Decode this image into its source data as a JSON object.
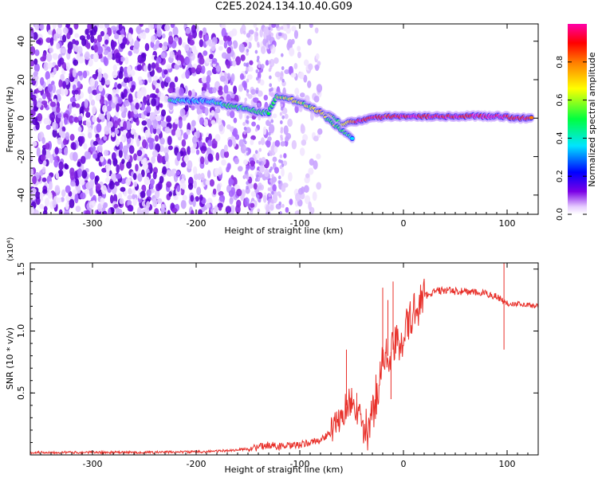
{
  "title": "C2E5.2024.134.10.40.G09",
  "chart_data": [
    {
      "type": "heatmap",
      "title": "C2E5.2024.134.10.40.G09",
      "xlabel": "Height of straight line (km)",
      "ylabel": "Frequency (Hz)",
      "xlim": [
        -360,
        130
      ],
      "ylim": [
        -50,
        49
      ],
      "xticks": [
        -300,
        -200,
        -100,
        0,
        100
      ],
      "xtick_labels": [
        "-300",
        "-200",
        "-100",
        "0",
        "100"
      ],
      "yticks": [
        -40,
        -20,
        0,
        20,
        40
      ],
      "ytick_labels": [
        "-40",
        "-20",
        "0",
        "20",
        "40"
      ],
      "colorbar": {
        "label": "Normalized spectral amplitude",
        "range": [
          0,
          1
        ],
        "ticks": [
          0.0,
          0.2,
          0.4,
          0.6,
          0.8
        ],
        "tick_labels": [
          "0.0",
          "0.2",
          "0.4",
          "0.6",
          "0.8"
        ],
        "colormap": "rainbow (white-violet-blue-cyan-green-yellow-red-magenta)"
      },
      "noise_region_x": [
        -360,
        -110
      ],
      "signal_ridge": [
        {
          "x": -225,
          "freq": 9,
          "amp": 0.4
        },
        {
          "x": -210,
          "freq": 9,
          "amp": 0.25
        },
        {
          "x": -190,
          "freq": 9,
          "amp": 0.22
        },
        {
          "x": -180,
          "freq": 8,
          "amp": 0.35
        },
        {
          "x": -165,
          "freq": 6,
          "amp": 0.42
        },
        {
          "x": -150,
          "freq": 5,
          "amp": 0.4
        },
        {
          "x": -140,
          "freq": 3,
          "amp": 0.45
        },
        {
          "x": -130,
          "freq": 3,
          "amp": 0.4
        },
        {
          "x": -122,
          "freq": 11,
          "amp": 0.5
        },
        {
          "x": -110,
          "freq": 10,
          "amp": 0.55
        },
        {
          "x": -100,
          "freq": 8,
          "amp": 0.55
        },
        {
          "x": -90,
          "freq": 6,
          "amp": 0.55
        },
        {
          "x": -80,
          "freq": 3,
          "amp": 0.6
        },
        {
          "x": -70,
          "freq": 1,
          "amp": 0.55
        },
        {
          "x": -60,
          "freq": -3,
          "amp": 0.45
        },
        {
          "x": -50,
          "freq": -2,
          "amp": 0.8
        },
        {
          "x": -40,
          "freq": -1,
          "amp": 0.9
        },
        {
          "x": -30,
          "freq": 0,
          "amp": 0.88
        },
        {
          "x": -15,
          "freq": 1,
          "amp": 0.85
        },
        {
          "x": 0,
          "freq": 1,
          "amp": 0.9
        },
        {
          "x": 20,
          "freq": 1,
          "amp": 0.85
        },
        {
          "x": 40,
          "freq": 1,
          "amp": 0.9
        },
        {
          "x": 60,
          "freq": 1,
          "amp": 0.9
        },
        {
          "x": 80,
          "freq": 1,
          "amp": 0.92
        },
        {
          "x": 95,
          "freq": 1,
          "amp": 0.92
        },
        {
          "x": 110,
          "freq": 0,
          "amp": 0.88
        },
        {
          "x": 125,
          "freq": 0,
          "amp": 0.85
        }
      ],
      "branch_ridge": [
        {
          "x": -75,
          "freq": 0,
          "amp": 0.45
        },
        {
          "x": -65,
          "freq": -4,
          "amp": 0.45
        },
        {
          "x": -55,
          "freq": -8,
          "amp": 0.4
        },
        {
          "x": -48,
          "freq": -11,
          "amp": 0.35
        }
      ]
    },
    {
      "type": "line",
      "xlabel": "Height of straight line (km)",
      "ylabel": "SNR (10 * v/v)",
      "y_scale_label": "(x10⁴)",
      "xlim": [
        -360,
        130
      ],
      "ylim": [
        0,
        1.55
      ],
      "xticks": [
        -300,
        -200,
        -100,
        0,
        100
      ],
      "xtick_labels": [
        "-300",
        "-200",
        "-100",
        "0",
        "100"
      ],
      "yticks": [
        0.5,
        1.0,
        1.5
      ],
      "ytick_labels": [
        "0.5",
        "1.0",
        "1.5"
      ],
      "series": [
        {
          "name": "SNR",
          "color": "#e8302a",
          "x": [
            -360,
            -300,
            -250,
            -200,
            -180,
            -160,
            -140,
            -130,
            -120,
            -110,
            -100,
            -90,
            -80,
            -70,
            -60,
            -55,
            -50,
            -45,
            -40,
            -35,
            -30,
            -25,
            -20,
            -15,
            -10,
            -5,
            0,
            5,
            10,
            15,
            20,
            25,
            30,
            40,
            50,
            60,
            70,
            80,
            90,
            95,
            100,
            110,
            120,
            130
          ],
          "y": [
            0.02,
            0.02,
            0.02,
            0.025,
            0.03,
            0.04,
            0.06,
            0.08,
            0.07,
            0.07,
            0.08,
            0.1,
            0.12,
            0.18,
            0.3,
            0.4,
            0.45,
            0.35,
            0.25,
            0.18,
            0.3,
            0.55,
            0.75,
            0.8,
            0.85,
            0.9,
            0.98,
            1.05,
            1.15,
            1.22,
            1.28,
            1.3,
            1.32,
            1.33,
            1.32,
            1.32,
            1.31,
            1.3,
            1.28,
            1.25,
            1.22,
            1.22,
            1.21,
            1.2
          ]
        }
      ],
      "spikes": [
        {
          "x": -55,
          "y": 0.85
        },
        {
          "x": -45,
          "y": 0.5
        },
        {
          "x": -20,
          "y": 1.35
        },
        {
          "x": -15,
          "y": 1.25
        },
        {
          "x": -10,
          "y": 1.4
        },
        {
          "x": -12,
          "y": 0.45
        },
        {
          "x": 97,
          "y": 1.58
        },
        {
          "x": 97,
          "y": 0.85
        }
      ]
    }
  ]
}
